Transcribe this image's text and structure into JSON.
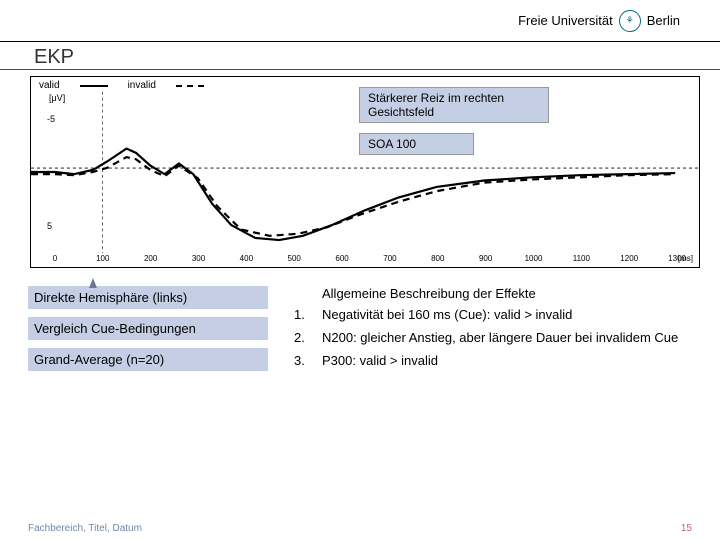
{
  "header": {
    "university": "Freie Universität",
    "city": "Berlin",
    "seal": "⚘"
  },
  "title": "EKP",
  "chart": {
    "type": "line",
    "legend": {
      "valid": "valid",
      "invalid": "invalid"
    },
    "y_unit": "[μV]",
    "y_ticks": {
      "neg5": "-5",
      "pos5": "5"
    },
    "x_ticks": [
      "0",
      "100",
      "200",
      "300",
      "400",
      "500",
      "600",
      "700",
      "800",
      "900",
      "1000",
      "1100",
      "1200",
      "1300"
    ],
    "x_unit": "[ms]",
    "x_range": [
      -50,
      1350
    ],
    "y_range": [
      -8,
      8
    ],
    "annotations": {
      "stimulus": "Stärkerer Reiz im rechten Gesichtsfeld",
      "soa": "SOA 100"
    },
    "series": {
      "valid": {
        "style": "solid",
        "width": 2.2,
        "color": "#000000",
        "points": [
          [
            -50,
            0
          ],
          [
            0,
            0
          ],
          [
            40,
            0.2
          ],
          [
            80,
            -0.2
          ],
          [
            110,
            -1.0
          ],
          [
            150,
            -2.2
          ],
          [
            170,
            -1.8
          ],
          [
            200,
            -0.6
          ],
          [
            230,
            0.2
          ],
          [
            260,
            -0.8
          ],
          [
            290,
            0.2
          ],
          [
            330,
            3.0
          ],
          [
            370,
            5.0
          ],
          [
            420,
            6.2
          ],
          [
            470,
            6.4
          ],
          [
            520,
            6.0
          ],
          [
            580,
            5.0
          ],
          [
            650,
            3.6
          ],
          [
            720,
            2.4
          ],
          [
            800,
            1.4
          ],
          [
            900,
            0.8
          ],
          [
            1000,
            0.5
          ],
          [
            1100,
            0.3
          ],
          [
            1200,
            0.2
          ],
          [
            1300,
            0.1
          ]
        ]
      },
      "invalid": {
        "style": "dashed",
        "width": 2.2,
        "color": "#000000",
        "points": [
          [
            -50,
            0.2
          ],
          [
            0,
            0.2
          ],
          [
            40,
            0.3
          ],
          [
            80,
            0.0
          ],
          [
            110,
            -0.4
          ],
          [
            150,
            -1.4
          ],
          [
            170,
            -1.2
          ],
          [
            200,
            -0.2
          ],
          [
            230,
            0.4
          ],
          [
            260,
            -0.6
          ],
          [
            300,
            0.6
          ],
          [
            340,
            3.2
          ],
          [
            390,
            5.4
          ],
          [
            450,
            6.0
          ],
          [
            510,
            5.8
          ],
          [
            570,
            5.2
          ],
          [
            640,
            4.0
          ],
          [
            720,
            2.8
          ],
          [
            800,
            1.8
          ],
          [
            900,
            1.0
          ],
          [
            1000,
            0.7
          ],
          [
            1100,
            0.5
          ],
          [
            1200,
            0.3
          ],
          [
            1300,
            0.2
          ]
        ]
      }
    },
    "background": "#ffffff",
    "zero_line_color": "#000000"
  },
  "left_boxes": {
    "b1": "Direkte Hemisphäre (links)",
    "b2": "Vergleich Cue-Bedingungen",
    "b3": "Grand-Average (n=20)"
  },
  "right": {
    "heading": "Allgemeine Beschreibung der Effekte",
    "items": [
      {
        "n": "1.",
        "t": "Negativität bei 160 ms (Cue): valid > invalid"
      },
      {
        "n": "2.",
        "t": "N200: gleicher Anstieg, aber längere Dauer bei invalidem Cue"
      },
      {
        "n": "3.",
        "t": "P300: valid > invalid"
      }
    ]
  },
  "footer": {
    "left": "Fachbereich, Titel, Datum",
    "page": "15"
  }
}
